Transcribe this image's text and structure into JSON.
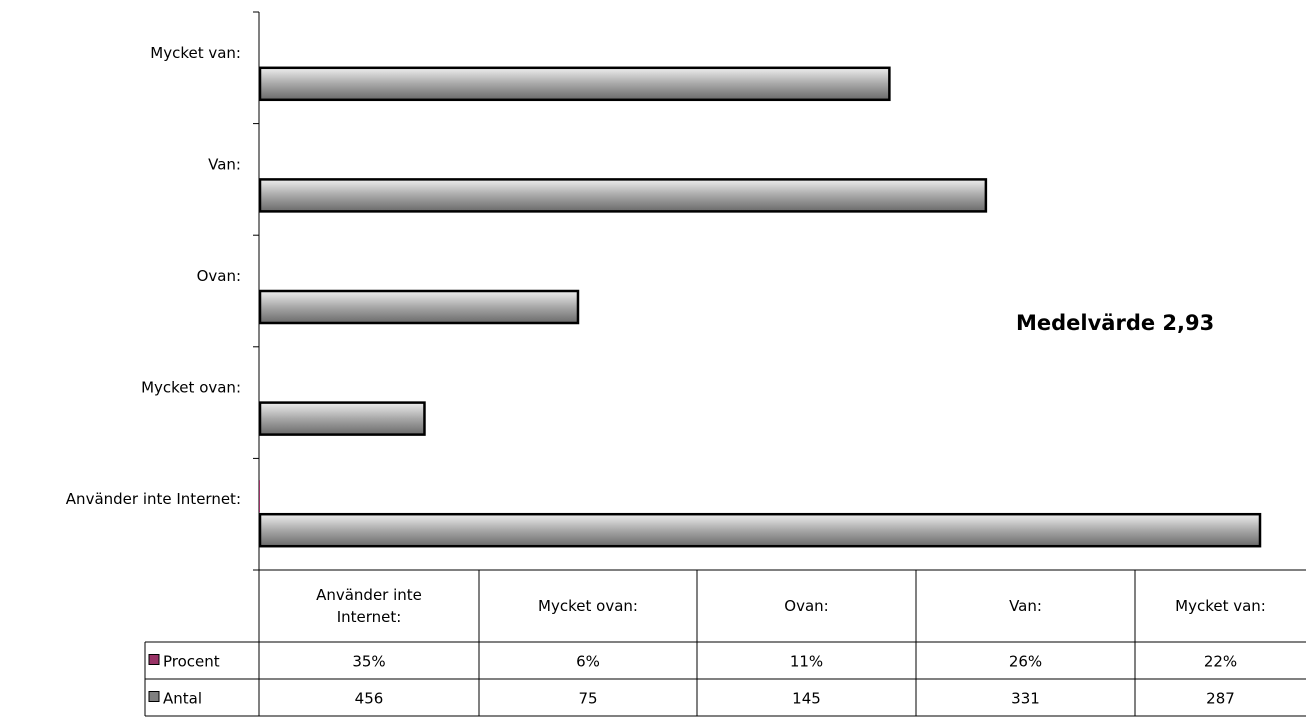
{
  "chart_data": {
    "type": "bar",
    "orientation": "horizontal",
    "categories": [
      "Använder inte Internet:",
      "Mycket ovan:",
      "Ovan:",
      "Van:",
      "Mycket van:"
    ],
    "series": [
      {
        "name": "Procent",
        "values": [
          35,
          6,
          11,
          26,
          22
        ],
        "labels": [
          "35%",
          "6%",
          "11%",
          "26%",
          "22%"
        ],
        "color": "#993366"
      },
      {
        "name": "Antal",
        "values": [
          456,
          75,
          145,
          331,
          287
        ],
        "labels": [
          "456",
          "75",
          "145",
          "331",
          "287"
        ],
        "color": "#808080"
      }
    ],
    "xlim": [
      0,
      456
    ],
    "annotation": "Medelvärde 2,93",
    "grid": false,
    "legend": "data-table"
  },
  "table_header_lines": [
    [
      "Använder inte",
      "Internet:"
    ],
    [
      "Mycket ovan:"
    ],
    [
      "Ovan:"
    ],
    [
      "Van:"
    ],
    [
      "Mycket van:"
    ]
  ]
}
